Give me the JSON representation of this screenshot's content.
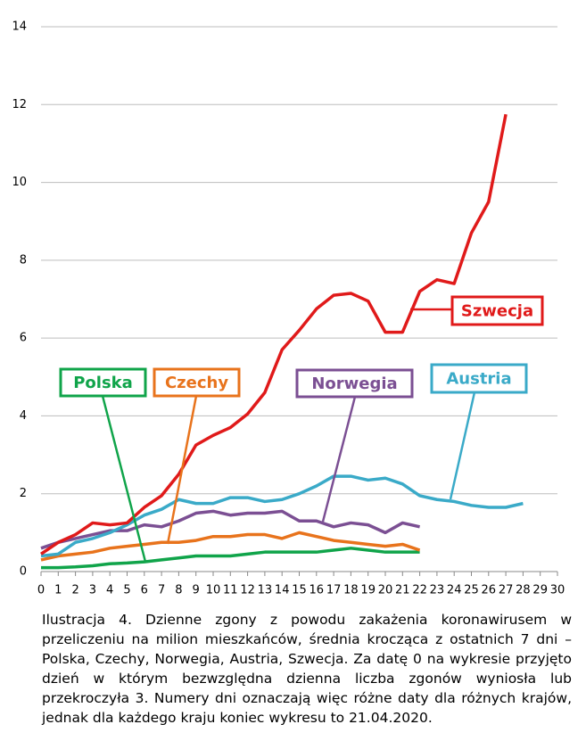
{
  "chart_data": {
    "type": "line",
    "x": [
      0,
      1,
      2,
      3,
      4,
      5,
      6,
      7,
      8,
      9,
      10,
      11,
      12,
      13,
      14,
      15,
      16,
      17,
      18,
      19,
      20,
      21,
      22,
      23,
      24,
      25,
      26,
      27,
      28,
      29,
      30
    ],
    "xlim": [
      0,
      30
    ],
    "xticks": [
      0,
      1,
      2,
      3,
      4,
      5,
      6,
      7,
      8,
      9,
      10,
      11,
      12,
      13,
      14,
      15,
      16,
      17,
      18,
      19,
      20,
      21,
      22,
      23,
      24,
      25,
      26,
      27,
      28,
      29,
      30
    ],
    "ylim": [
      0,
      14
    ],
    "yticks": [
      0,
      2,
      4,
      6,
      8,
      10,
      12,
      14
    ],
    "grid": true,
    "series": [
      {
        "name": "Polska",
        "color": "#10a44a",
        "values": [
          0.1,
          0.1,
          0.12,
          0.15,
          0.2,
          0.22,
          0.25,
          0.3,
          0.35,
          0.4,
          0.4,
          0.4,
          0.45,
          0.5,
          0.5,
          0.5,
          0.5,
          0.55,
          0.6,
          0.55,
          0.5,
          0.5,
          0.5,
          null,
          null,
          null,
          null,
          null,
          null,
          null,
          null
        ]
      },
      {
        "name": "Czechy",
        "color": "#e8731c",
        "values": [
          0.3,
          0.4,
          0.45,
          0.5,
          0.6,
          0.65,
          0.7,
          0.75,
          0.75,
          0.8,
          0.9,
          0.9,
          0.95,
          0.95,
          0.85,
          1.0,
          0.9,
          0.8,
          0.75,
          0.7,
          0.65,
          0.7,
          0.55,
          null,
          null,
          null,
          null,
          null,
          null,
          null,
          null
        ]
      },
      {
        "name": "Norwegia",
        "color": "#7b4f93",
        "values": [
          0.6,
          0.75,
          0.85,
          0.95,
          1.05,
          1.05,
          1.2,
          1.15,
          1.3,
          1.5,
          1.55,
          1.45,
          1.5,
          1.5,
          1.55,
          1.3,
          1.3,
          1.15,
          1.25,
          1.2,
          1.0,
          1.25,
          1.15,
          null,
          null,
          null,
          null,
          null,
          null,
          null,
          null
        ]
      },
      {
        "name": "Austria",
        "color": "#3aaac8",
        "values": [
          0.4,
          0.45,
          0.75,
          0.85,
          1.0,
          1.2,
          1.45,
          1.6,
          1.85,
          1.75,
          1.75,
          1.9,
          1.9,
          1.8,
          1.85,
          2.0,
          2.2,
          2.45,
          2.45,
          2.35,
          2.4,
          2.25,
          1.95,
          1.85,
          1.8,
          1.7,
          1.65,
          1.65,
          1.75,
          null,
          null
        ]
      },
      {
        "name": "Szwecja",
        "color": "#e01a1a",
        "values": [
          0.45,
          0.75,
          0.95,
          1.25,
          1.2,
          1.25,
          1.65,
          1.95,
          2.5,
          3.25,
          3.5,
          3.7,
          4.05,
          4.6,
          5.7,
          6.2,
          6.75,
          7.1,
          7.15,
          6.95,
          6.15,
          6.15,
          7.2,
          7.5,
          7.4,
          8.7,
          9.5,
          11.75,
          null,
          null,
          null
        ]
      }
    ],
    "caption": "Ilustracja 4. Dzienne zgony z powodu zakażenia koronawirusem w przeliczeniu na milion mieszkańców, średnia krocząca z ostatnich 7 dni – Polska, Czechy, Norwegia, Austria, Szwecja. Za datę 0 na wykresie przyjęto dzień w którym bezwzględna dzienna liczba zgonów wyniosła lub przekroczyła 3. Numery dni oznaczają więc różne daty dla różnych krajów, jednak dla każdego kraju koniec wykresu to 21.04.2020."
  }
}
